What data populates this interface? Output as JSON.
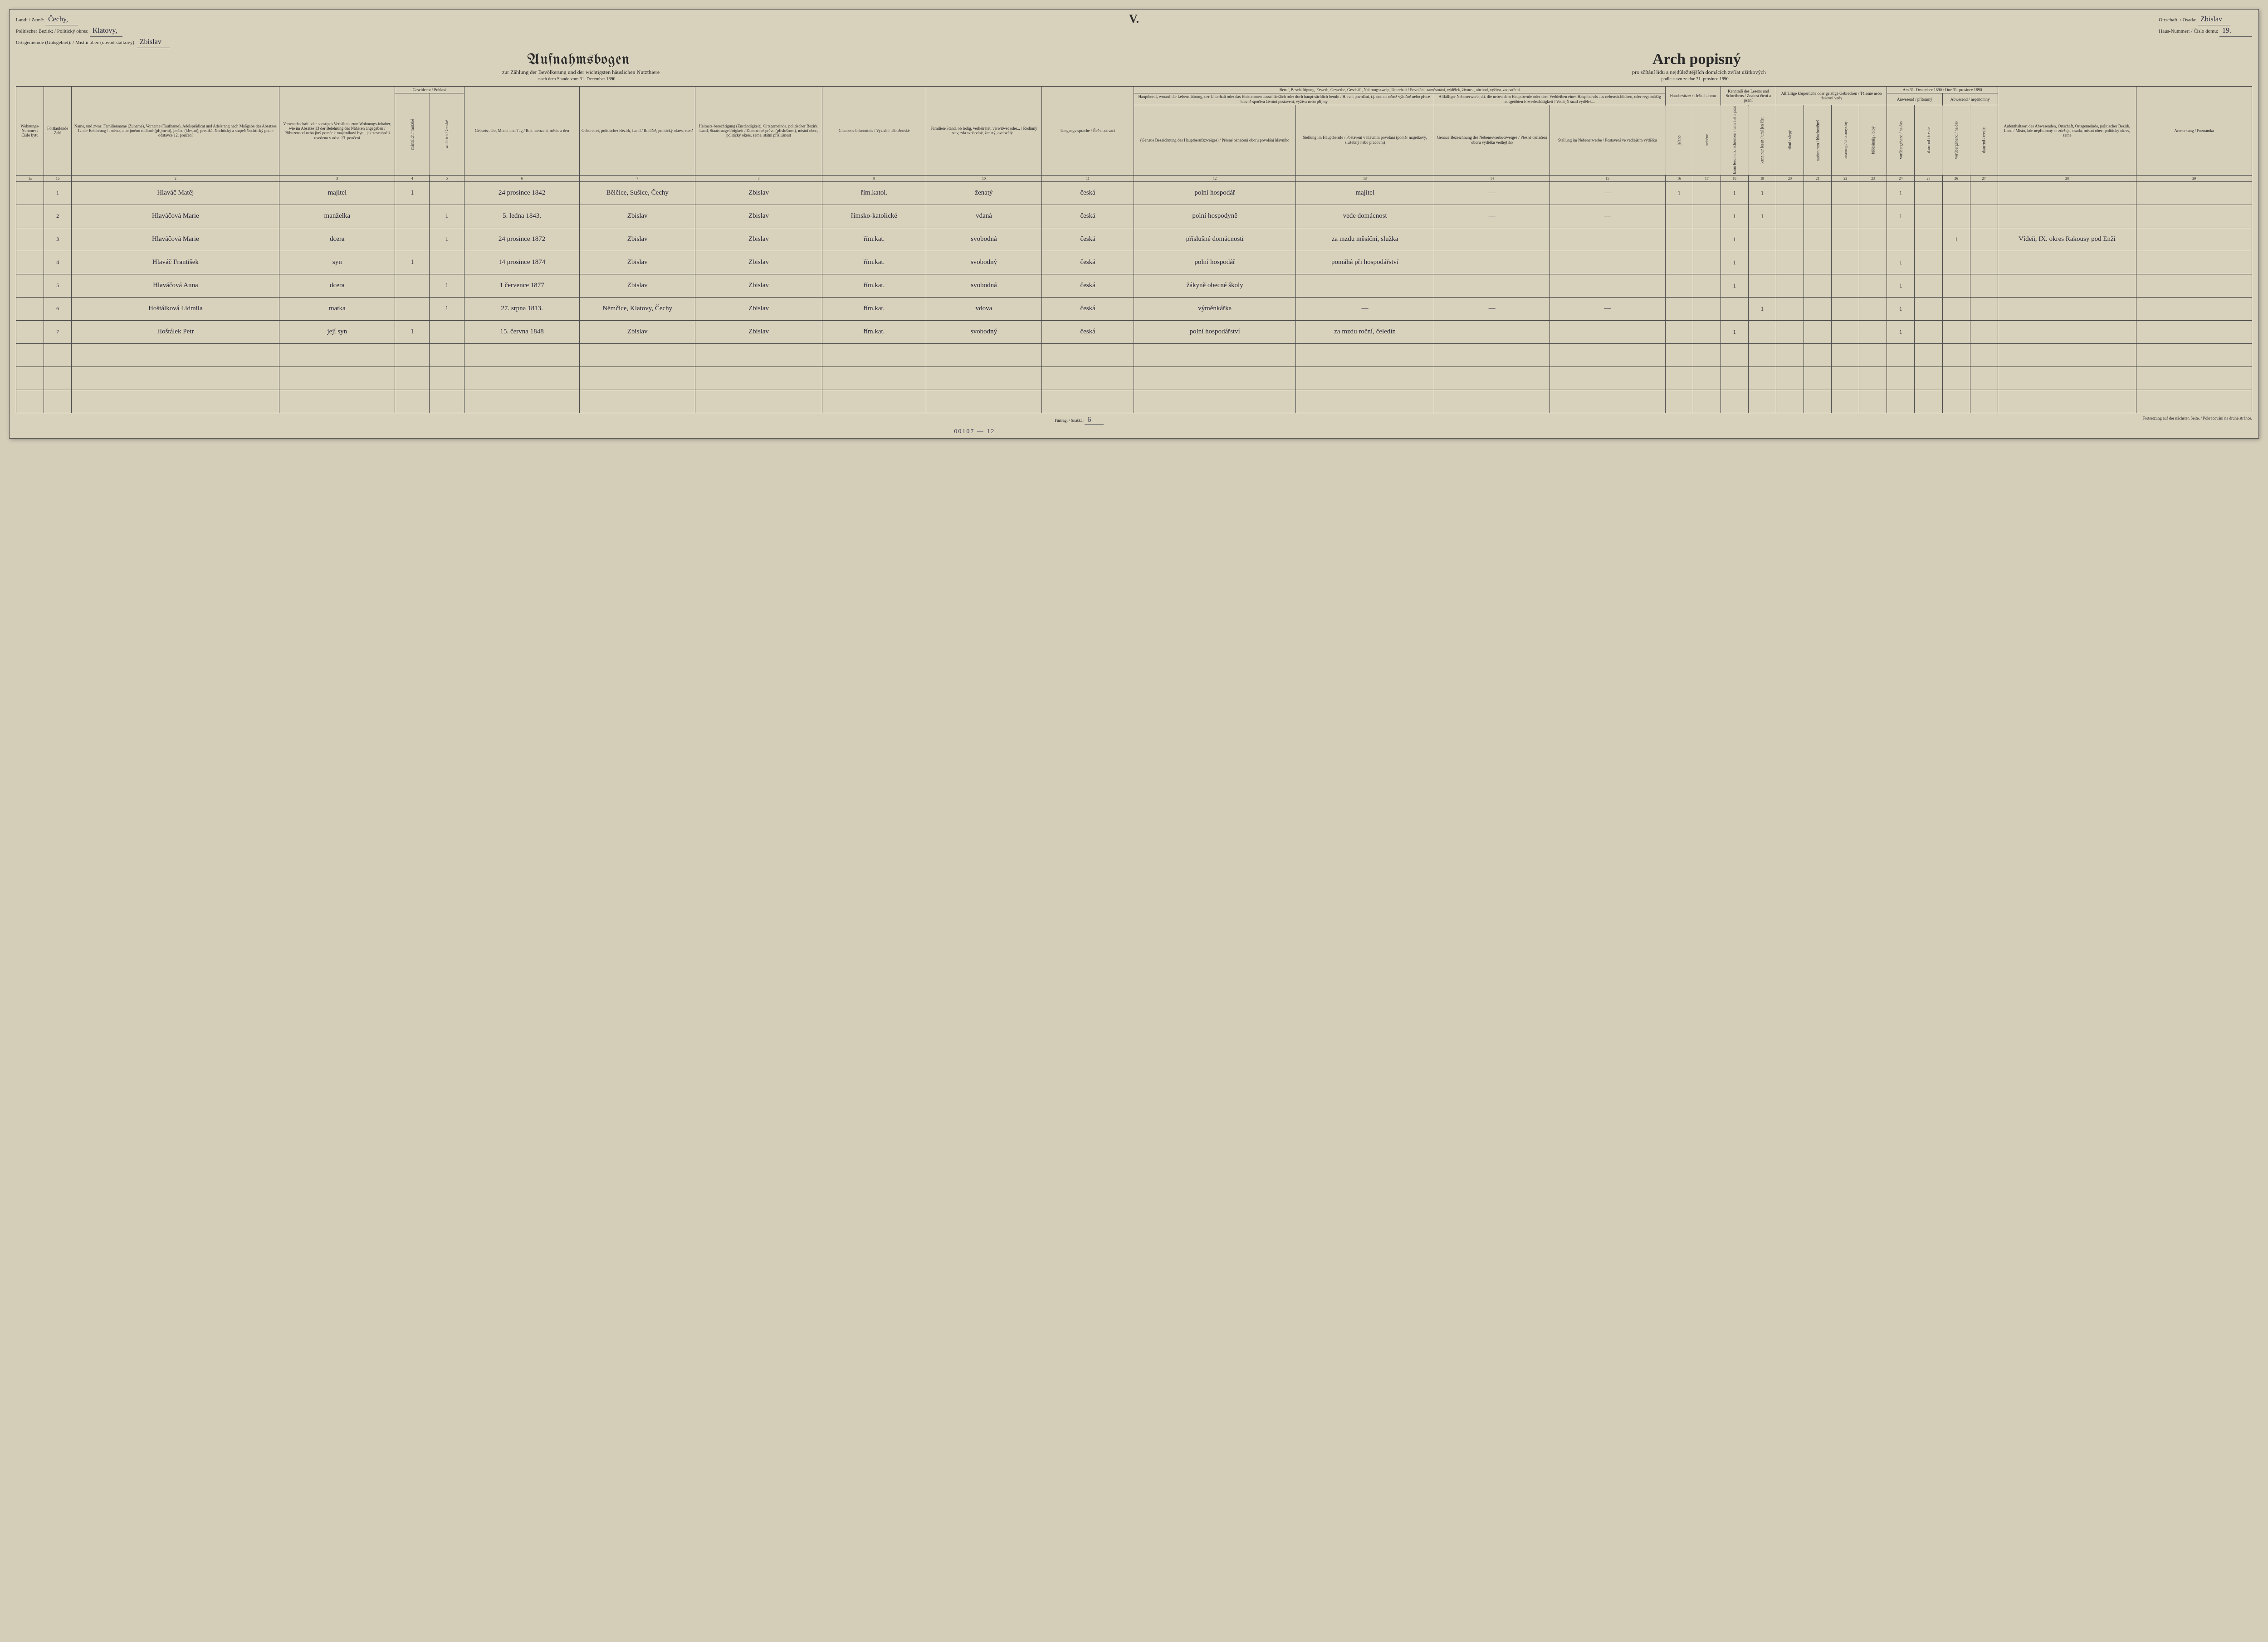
{
  "header": {
    "land_label": "Land: / Země:",
    "land_value": "Čechy,",
    "bezirk_label": "Politischer Bezirk: / Politický okres:",
    "bezirk_value": "Klatovy,",
    "ortsgemeinde_label": "Ortsgemeinde (Gutsgebiet): / Místní obec (obvod statkový):",
    "ortsgemeinde_value": "Zbislav",
    "ortschaft_label": "Ortschaft: / Osada:",
    "ortschaft_value": "Zbislav",
    "hausnr_label": "Haus-Nummer: / Číslo domu:",
    "hausnr_value": "19.",
    "roman": "V."
  },
  "titles": {
    "de": "Aufnahmsbogen",
    "cz": "Arch popisný",
    "sub_de": "zur Zählung der Bevölkerung und der wichtigsten häuslichen Nutzthiere",
    "sub_cz": "pro sčítání lidu a nejdůležitějších domácích zvířat užitkových",
    "date_de": "nach dem Stande vom 31. December 1890.",
    "date_cz": "podle stavu ze dne 31. prosince 1890."
  },
  "colheads": {
    "c1a": "Wohnungs-Nummer / Číslo bytu",
    "c1b": "Fortlaufende Zahl",
    "c2": "Name, und zwar: Familienname (Zuname), Vorname (Taufname), Adelsprädicat und Adelsrang nach Maßgabe des Absatzes 12 der Belehrung / Jméno, a to: jméno rodinné (příjmení), jméno (křestní), predikát šlechtický a stupeň šlechtický podle odstavce 12. poučení",
    "c3": "Verwandtschaft oder sonstiges Verhältnis zum Wohnungs-inhaber, wie im Absatze 13 der Belehrung des Näheren angegeben / Příbuzenství nebo jiný poměr k majetníkovi bytu, jak zevrubněji uvedeno v odst. 13. poučení",
    "c45_top": "Geschlecht / Pohlaví",
    "c4": "männlich / mužské",
    "c5": "weiblich / ženské",
    "c6": "Geburts-Jahr, Monat und Tag / Rok narození, měsíc a den",
    "c7": "Geburtsort, politischer Bezirk, Land / Rodiště, politický okres, země",
    "c8": "Heimats-berechtigung (Zuständigkeit), Ortsgemeinde, politischer Bezirk, Land, Staats-angehörigkeit / Domovské právo (příslušnost), místní obec, politický okres, země, státní příslušnost",
    "c9": "Glaubens-bekenntnis / Vyznání náboženské",
    "c10": "Familien-Stand, ob ledig, verheiratet, verwitwet oder... / Rodinný stav, zda svobodný, ženatý, ovdovělý...",
    "c11": "Umgangs-sprache / Řeč obcovací",
    "c12_15_top": "Beruf, Beschäftigung, Erwerb, Gewerbe, Geschäft, Nahrungszweig, Unterhalt / Povolání, zaměstnání, výdělek, živnost, obchod, výživa, zaopatření",
    "c12_13_top": "Hauptberuf, worauf die Lebensführung, der Unterhalt oder das Einkommen ausschließlich oder doch haupt-sächlich beruht / Hlavní povolání, t.j. ono na němž výlučně nebo přece hlavně spočívá životní postavení, výživa nebo příjmy",
    "c14_15_top": "Allfälliger Nebenerwerb, d.i. die neben dem Hauptberufe oder dem Verbleiben eines Hauptberufs aus nebensächlichen, oder regelmäßig ausgeübten Erwerbsthätigkeit / Vedlejší snad výdělek...",
    "c12": "(Genaue Bezeichnung des Hauptberufszweiges) / Přesné označení oboru povolání hlavního",
    "c13": "Stellung im Hauptberufe / Postavení v hlavním povolání (poměr majetkový, služebný nebo pracovní)",
    "c14": "Genaue Bezeichnung des Nebenerwerbs-zweiges / Přesné označení oboru výdělku vedlejšího",
    "c15": "Stellung im Nebenerwerbe / Postavení ve vedlejším výdělku",
    "c16_17_top": "Hausbesitzer / Držitel domu",
    "c16": "ja/ano",
    "c17": "nein/ne",
    "c18_19_top": "Kenntniß des Lesens und Schreibens / Znalost čtení a psaní",
    "c18": "kann lesen und schreiben / umí číst a psát",
    "c19": "kann nur lesen / umí jen číst",
    "c20_23_top": "Allfällige körperliche oder geistige Gebrechen / Tělesné nebo duševní vady",
    "c20": "blind / slepý",
    "c21": "taubstumm / hluchoněmý",
    "c22": "irrsinnig / choromyslný",
    "c23": "blödsinnig / blbý",
    "c24_27_top": "Am 31. December 1890 / Dne 31. prosince 1890",
    "c24_25_top": "Anwesend / přítomný",
    "c26_27_top": "Abwesend / nepřítomný",
    "c24": "vorübergehend / na čas",
    "c25": "dauernd / trvale",
    "c26": "vorübergehend / na čas",
    "c27": "dauernd / trvale",
    "c28": "Aufenthaltsort des Abwesenden, Ortschaft, Ortsgemeinde, politischer Bezirk, Land / Místo, kde nepřítomný se zdržuje, osada, místní obec, politický okres, země",
    "c29": "Anmerkung / Poznámka"
  },
  "colnums": [
    "1a",
    "1b",
    "2",
    "3",
    "4",
    "5",
    "6",
    "7",
    "8",
    "9",
    "10",
    "11",
    "12",
    "13",
    "14",
    "15",
    "16",
    "17",
    "18",
    "19",
    "20",
    "21",
    "22",
    "23",
    "24",
    "25",
    "26",
    "27",
    "28",
    "29"
  ],
  "rows": [
    {
      "n": "1",
      "name": "Hlaváč Matěj",
      "rel": "majitel",
      "m": "1",
      "f": "",
      "birth": "24 prosince 1842",
      "place": "Bělčice, Sušice, Čechy",
      "home": "Zbislav",
      "relig": "řím.katol.",
      "stav": "ženatý",
      "lang": "česká",
      "occ": "polní hospodář",
      "pos": "majitel",
      "neb": "—",
      "nebpos": "—",
      "owner1": "1",
      "owner2": "",
      "read": "1",
      "readonly": "1",
      "pres": "1",
      "note": ""
    },
    {
      "n": "2",
      "name": "Hlaváčová Marie",
      "rel": "manželka",
      "m": "",
      "f": "1",
      "birth": "5. ledna 1843.",
      "place": "Zbislav",
      "home": "Zbislav",
      "relig": "římsko-katolické",
      "stav": "vdaná",
      "lang": "česká",
      "occ": "polní hospodyně",
      "pos": "vede domácnost",
      "neb": "—",
      "nebpos": "—",
      "owner1": "",
      "owner2": "",
      "read": "1",
      "readonly": "1",
      "pres": "1",
      "note": ""
    },
    {
      "n": "3",
      "name": "Hlaváčová Marie",
      "rel": "dcera",
      "m": "",
      "f": "1",
      "birth": "24 prosince 1872",
      "place": "Zbislav",
      "home": "Zbislav",
      "relig": "řím.kat.",
      "stav": "svobodná",
      "lang": "česká",
      "occ": "příslušné domácnosti",
      "pos": "za mzdu měsíční, služka",
      "neb": "",
      "nebpos": "",
      "owner1": "",
      "owner2": "",
      "read": "1",
      "readonly": "",
      "pres": "",
      "abs": "1",
      "note": "Vídeň, IX. okres Rakousy pod Enží"
    },
    {
      "n": "4",
      "name": "Hlaváč František",
      "rel": "syn",
      "m": "1",
      "f": "",
      "birth": "14 prosince 1874",
      "place": "Zbislav",
      "home": "Zbislav",
      "relig": "řím.kat.",
      "stav": "svobodný",
      "lang": "česká",
      "occ": "polní hospodář",
      "pos": "pomáhá při hospodářství",
      "neb": "",
      "nebpos": "",
      "owner1": "",
      "owner2": "",
      "read": "1",
      "readonly": "",
      "pres": "1",
      "note": ""
    },
    {
      "n": "5",
      "name": "Hlaváčová Anna",
      "rel": "dcera",
      "m": "",
      "f": "1",
      "birth": "1 července 1877",
      "place": "Zbislav",
      "home": "Zbislav",
      "relig": "řím.kat.",
      "stav": "svobodná",
      "lang": "česká",
      "occ": "žákyně obecné školy",
      "pos": "",
      "neb": "",
      "nebpos": "",
      "owner1": "",
      "owner2": "",
      "read": "1",
      "readonly": "",
      "pres": "1",
      "note": ""
    },
    {
      "n": "6",
      "name": "Hoštálková Lidmila",
      "rel": "matka",
      "m": "",
      "f": "1",
      "birth": "27. srpna 1813.",
      "place": "Němčice, Klatovy, Čechy",
      "home": "Zbislav",
      "relig": "řím.kat.",
      "stav": "vdova",
      "lang": "česká",
      "occ": "výměnkářka",
      "pos": "—",
      "neb": "—",
      "nebpos": "—",
      "owner1": "",
      "owner2": "",
      "read": "",
      "readonly": "1",
      "pres": "1",
      "note": ""
    },
    {
      "n": "7",
      "name": "Hoštálek Petr",
      "rel": "její syn",
      "m": "1",
      "f": "",
      "birth": "15. června 1848",
      "place": "Zbislav",
      "home": "Zbislav",
      "relig": "řím.kat.",
      "stav": "svobodný",
      "lang": "česká",
      "occ": "polní hospodářství",
      "pos": "za mzdu roční, čeledín",
      "neb": "",
      "nebpos": "",
      "owner1": "",
      "owner2": "",
      "read": "1",
      "readonly": "",
      "pres": "1",
      "note": ""
    }
  ],
  "footer": {
    "furtrag_label": "Fürtrag: / Snáška:",
    "furtrag_value": "6",
    "cont": "Fortsetzung auf der nächsten Seite. / Pokračování na druhé stránce.",
    "archive": "00107 — 12"
  }
}
